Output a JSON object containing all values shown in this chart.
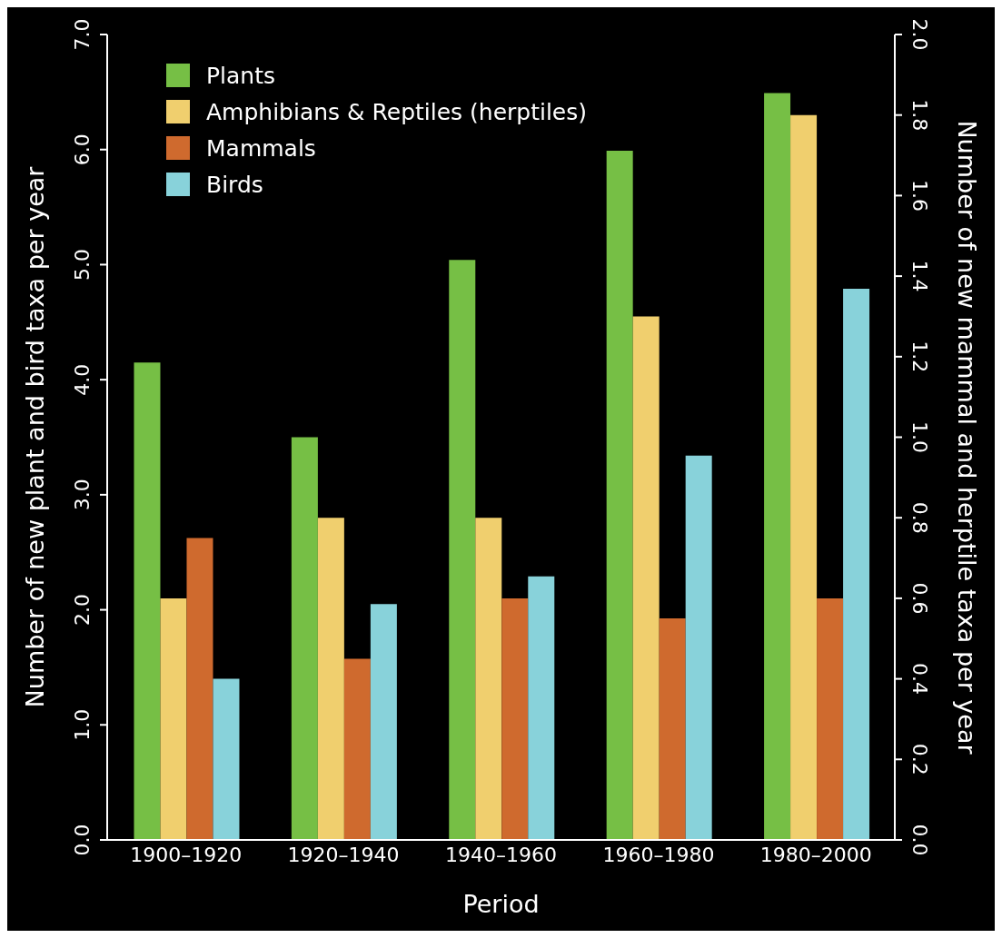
{
  "chart_data": {
    "type": "bar",
    "xlabel": "Period",
    "ylabel": "Number of new plant and bird taxa per year",
    "y2label": "Number of new mammal and herptile taxa per year",
    "categories": [
      "1900–1920",
      "1920–1940",
      "1940–1960",
      "1960–1980",
      "1980–2000"
    ],
    "series": [
      {
        "name": "Plants",
        "color": "#76bf45",
        "values": [
          4.15,
          3.5,
          5.04,
          5.99,
          6.49
        ]
      },
      {
        "name": "Amphibians & Reptiles (herptiles)",
        "color": "#f0cf6e",
        "axis": "y2",
        "values": [
          0.6,
          0.8,
          0.8,
          1.3,
          1.8
        ]
      },
      {
        "name": "Mammals",
        "color": "#cf6a2e",
        "axis": "y2",
        "values": [
          0.75,
          0.45,
          0.6,
          0.55,
          0.6
        ]
      },
      {
        "name": "Birds",
        "color": "#88d2da",
        "values": [
          1.4,
          2.05,
          2.29,
          3.34,
          4.79
        ]
      }
    ],
    "ylim": [
      0,
      7
    ],
    "yticks": [
      {
        "value": 0,
        "label": "0.0"
      },
      {
        "value": 1,
        "label": "1.0"
      },
      {
        "value": 2,
        "label": "2.0"
      },
      {
        "value": 3,
        "label": "3.0"
      },
      {
        "value": 4,
        "label": "4.0"
      },
      {
        "value": 5,
        "label": "5.0"
      },
      {
        "value": 6,
        "label": "6.0"
      },
      {
        "value": 7,
        "label": "7.0"
      }
    ],
    "y2lim": [
      0,
      2
    ],
    "y2ticks": [
      {
        "value": 0,
        "label": "0.0"
      },
      0.2,
      0.4,
      0.6,
      0.8,
      {
        "value": 1,
        "label": "1.0"
      },
      1.2,
      1.4,
      1.6,
      1.8,
      {
        "value": 2,
        "label": "2.0"
      }
    ],
    "grid": false,
    "legend": "top left"
  }
}
